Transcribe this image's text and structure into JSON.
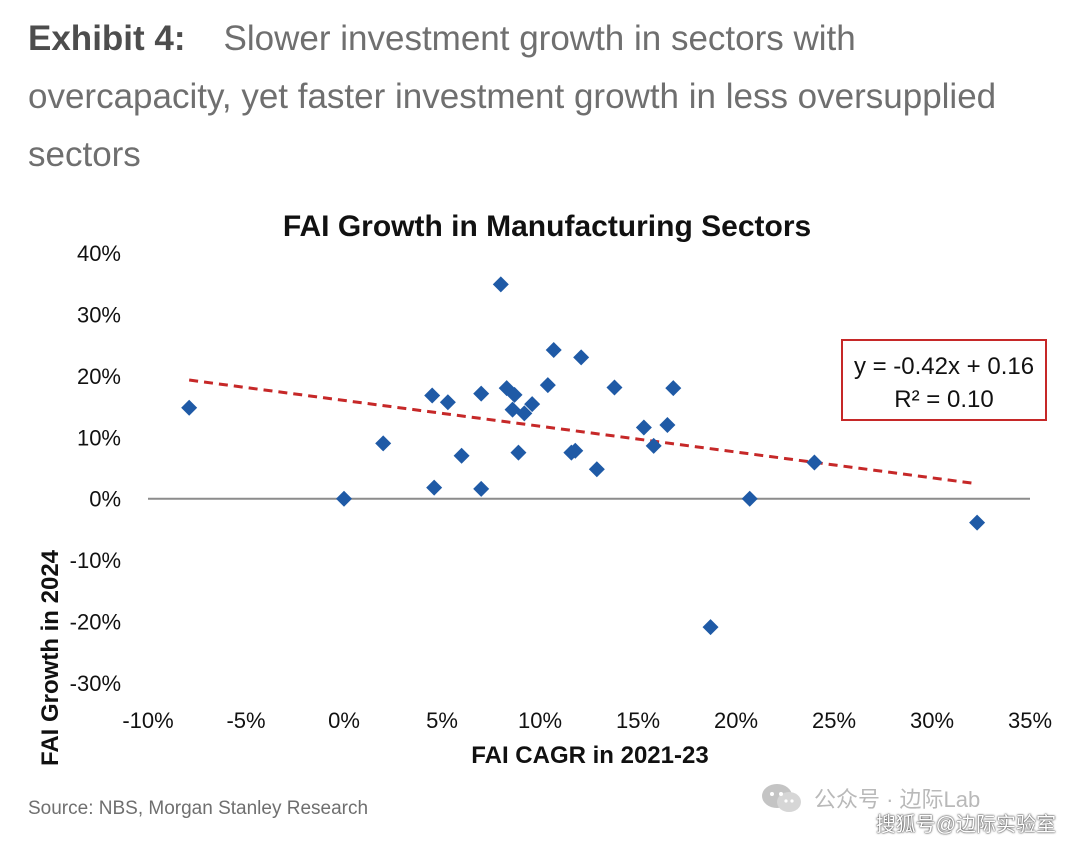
{
  "header": {
    "exhibit_label": "Exhibit 4:",
    "exhibit_title": "Slower investment growth in sectors with overcapacity, yet faster investment growth in less oversupplied sectors"
  },
  "source": "Source: NBS, Morgan Stanley Research",
  "watermark": {
    "line1": "公众号 · 边际Lab",
    "line2": "搜狐号@边际实验室",
    "icon": "wechat-logo-icon"
  },
  "colors": {
    "points": "#1f5aa6",
    "trendline": "#c62828",
    "annotation_border": "#c62828",
    "zero_line": "#8c8c8c"
  },
  "chart_data": {
    "type": "scatter",
    "title": "FAI Growth in Manufacturing Sectors",
    "xlabel": "FAI CAGR in 2021-23",
    "ylabel": "FAI Growth in 2024",
    "xlim": [
      -10,
      35
    ],
    "ylim": [
      -30,
      40
    ],
    "x_ticks": [
      "-10%",
      "-5%",
      "0%",
      "5%",
      "10%",
      "15%",
      "20%",
      "25%",
      "30%",
      "35%"
    ],
    "y_ticks": [
      "40%",
      "30%",
      "20%",
      "10%",
      "0%",
      "-10%",
      "-20%",
      "-30%"
    ],
    "grid": false,
    "legend": "none",
    "points": [
      {
        "x": -7.9,
        "y": 14.8
      },
      {
        "x": 0.0,
        "y": 0.0
      },
      {
        "x": 2.0,
        "y": 9.0
      },
      {
        "x": 4.5,
        "y": 16.8
      },
      {
        "x": 4.6,
        "y": 1.8
      },
      {
        "x": 5.3,
        "y": 15.7
      },
      {
        "x": 6.0,
        "y": 7.0
      },
      {
        "x": 7.0,
        "y": 1.6
      },
      {
        "x": 7.0,
        "y": 17.1
      },
      {
        "x": 8.0,
        "y": 34.9
      },
      {
        "x": 8.3,
        "y": 18.0
      },
      {
        "x": 8.6,
        "y": 14.5
      },
      {
        "x": 8.7,
        "y": 16.9
      },
      {
        "x": 8.9,
        "y": 7.5
      },
      {
        "x": 9.2,
        "y": 13.9
      },
      {
        "x": 9.6,
        "y": 15.4
      },
      {
        "x": 10.4,
        "y": 18.5
      },
      {
        "x": 10.7,
        "y": 24.2
      },
      {
        "x": 11.6,
        "y": 7.5
      },
      {
        "x": 11.8,
        "y": 7.8
      },
      {
        "x": 12.1,
        "y": 23.0
      },
      {
        "x": 12.9,
        "y": 4.8
      },
      {
        "x": 13.8,
        "y": 18.1
      },
      {
        "x": 15.3,
        "y": 11.6
      },
      {
        "x": 15.8,
        "y": 8.6
      },
      {
        "x": 16.5,
        "y": 12.0
      },
      {
        "x": 16.8,
        "y": 18.0
      },
      {
        "x": 18.7,
        "y": -20.9
      },
      {
        "x": 20.7,
        "y": 0.0
      },
      {
        "x": 24.0,
        "y": 5.9
      },
      {
        "x": 32.3,
        "y": -3.9
      }
    ],
    "trendline": {
      "style": "dashed",
      "x_start": -7.9,
      "x_end": 32.3,
      "equation": "y = -0.42x + 0.16",
      "r_squared": "R² = 0.10"
    }
  }
}
